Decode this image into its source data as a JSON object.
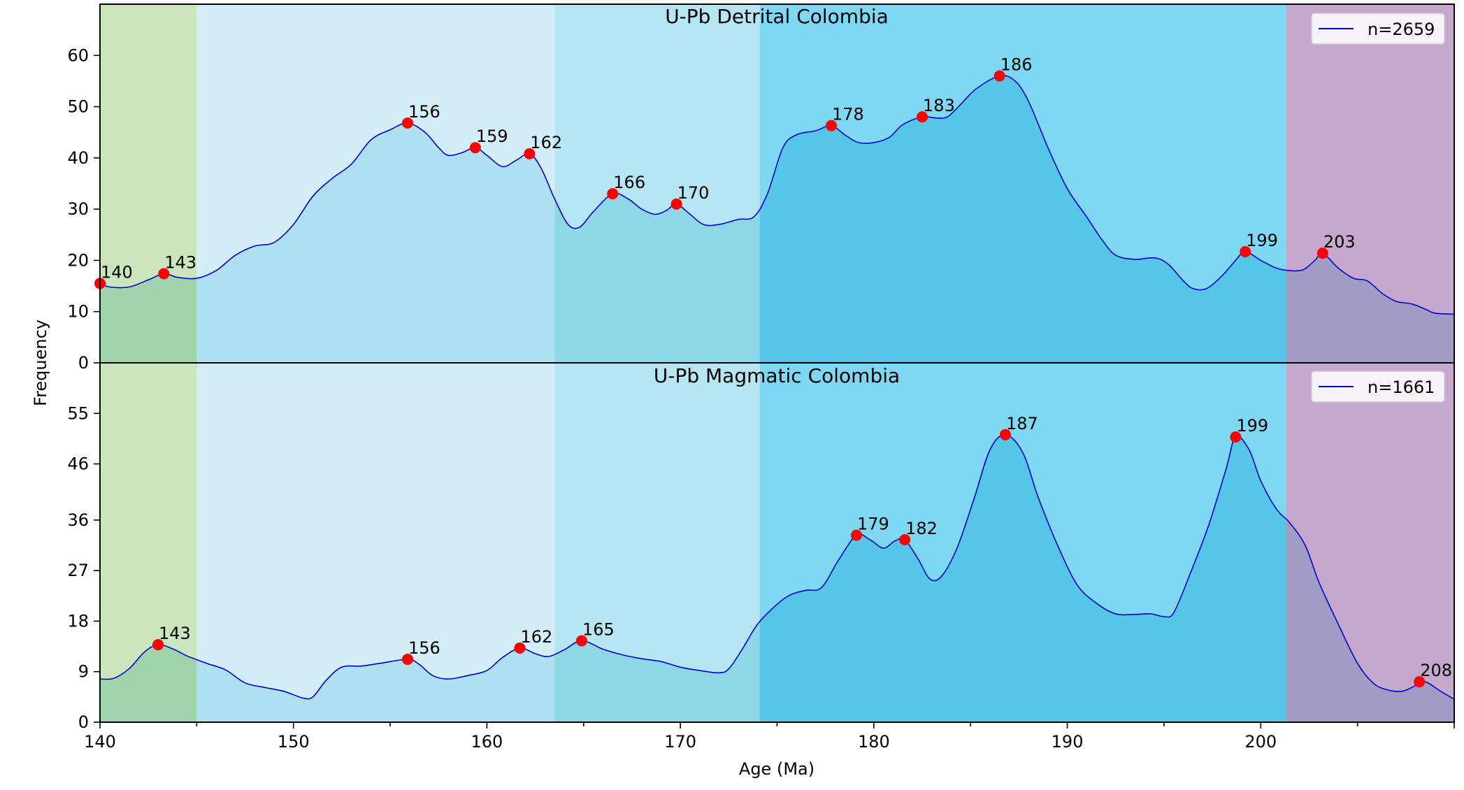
{
  "figure": {
    "ylabel": "Frequency",
    "xlabel": "Age (Ma)"
  },
  "chart_data": [
    {
      "type": "area",
      "title": "U-Pb Detrital Colombia",
      "legend": "n=2659",
      "legend_placement": "top-right",
      "xlim": [
        140,
        210
      ],
      "ylim": [
        0,
        70
      ],
      "yticks": [
        0,
        10,
        20,
        30,
        40,
        50,
        60
      ],
      "xticks": [
        140,
        150,
        160,
        170,
        180,
        190,
        200
      ],
      "line_color": "#0000cc",
      "peak_color": "#ff0000",
      "curve": [
        [
          140,
          15.5
        ],
        [
          140.5,
          14.8
        ],
        [
          141.5,
          14.8
        ],
        [
          142.5,
          16.2
        ],
        [
          143.3,
          17.4
        ],
        [
          144,
          16.7
        ],
        [
          145,
          16.5
        ],
        [
          146,
          18
        ],
        [
          147,
          21
        ],
        [
          148,
          22.8
        ],
        [
          149,
          23.5
        ],
        [
          150,
          27
        ],
        [
          151,
          32.5
        ],
        [
          152,
          36
        ],
        [
          153,
          38.8
        ],
        [
          154,
          43.5
        ],
        [
          155,
          45.5
        ],
        [
          155.9,
          46.8
        ],
        [
          156.8,
          45
        ],
        [
          157.5,
          42
        ],
        [
          158,
          40.5
        ],
        [
          158.7,
          41
        ],
        [
          159.4,
          42
        ],
        [
          160,
          40.5
        ],
        [
          160.8,
          38.3
        ],
        [
          161.5,
          39.5
        ],
        [
          162.2,
          40.8
        ],
        [
          162.8,
          38
        ],
        [
          163.5,
          32
        ],
        [
          164.2,
          27
        ],
        [
          164.8,
          26.5
        ],
        [
          165.5,
          29.5
        ],
        [
          166.5,
          33
        ],
        [
          167.3,
          32
        ],
        [
          168,
          30
        ],
        [
          168.7,
          29
        ],
        [
          169.3,
          29.8
        ],
        [
          169.8,
          31
        ],
        [
          170.5,
          29
        ],
        [
          171.2,
          27
        ],
        [
          172,
          27
        ],
        [
          173,
          28
        ],
        [
          173.8,
          28.5
        ],
        [
          174.5,
          33
        ],
        [
          175.3,
          42
        ],
        [
          176,
          44.5
        ],
        [
          177,
          45.3
        ],
        [
          177.8,
          46.3
        ],
        [
          178.5,
          44.5
        ],
        [
          179.2,
          43
        ],
        [
          180,
          43
        ],
        [
          180.8,
          44
        ],
        [
          181.5,
          46.5
        ],
        [
          182.5,
          48
        ],
        [
          183.2,
          47.8
        ],
        [
          183.8,
          48
        ],
        [
          184.5,
          50.5
        ],
        [
          185.3,
          53.5
        ],
        [
          186.5,
          56
        ],
        [
          187.3,
          55
        ],
        [
          188,
          51
        ],
        [
          189,
          42
        ],
        [
          190,
          34
        ],
        [
          191,
          28.5
        ],
        [
          191.8,
          24
        ],
        [
          192.5,
          21
        ],
        [
          193.5,
          20.2
        ],
        [
          194.5,
          20.5
        ],
        [
          195.2,
          19.3
        ],
        [
          196,
          16
        ],
        [
          196.5,
          14.5
        ],
        [
          197.2,
          14.5
        ],
        [
          198,
          17
        ],
        [
          198.7,
          20
        ],
        [
          199.2,
          21.7
        ],
        [
          200,
          20
        ],
        [
          200.8,
          18.5
        ],
        [
          201.5,
          18
        ],
        [
          202.2,
          18.2
        ],
        [
          202.8,
          20
        ],
        [
          203.2,
          21.4
        ],
        [
          204,
          18.5
        ],
        [
          204.8,
          16.5
        ],
        [
          205.5,
          16
        ],
        [
          206.3,
          13.5
        ],
        [
          207,
          12
        ],
        [
          207.8,
          11.5
        ],
        [
          208.5,
          10.5
        ],
        [
          209,
          9.7
        ],
        [
          210,
          9.5
        ]
      ],
      "peaks": [
        {
          "x": 140,
          "y": 15.5,
          "label": "140"
        },
        {
          "x": 143.3,
          "y": 17.4,
          "label": "143"
        },
        {
          "x": 155.9,
          "y": 46.8,
          "label": "156"
        },
        {
          "x": 159.4,
          "y": 42,
          "label": "159"
        },
        {
          "x": 162.2,
          "y": 40.8,
          "label": "162"
        },
        {
          "x": 166.5,
          "y": 33,
          "label": "166"
        },
        {
          "x": 169.8,
          "y": 31,
          "label": "170"
        },
        {
          "x": 177.8,
          "y": 46.3,
          "label": "178"
        },
        {
          "x": 182.5,
          "y": 48,
          "label": "183"
        },
        {
          "x": 186.5,
          "y": 56,
          "label": "186"
        },
        {
          "x": 199.2,
          "y": 21.7,
          "label": "199"
        },
        {
          "x": 203.2,
          "y": 21.4,
          "label": "203"
        }
      ]
    },
    {
      "type": "area",
      "title": "U-Pb Magmatic Colombia",
      "legend": "n=1661",
      "legend_placement": "top-right",
      "xlim": [
        140,
        210
      ],
      "ylim": [
        0,
        64
      ],
      "yticks": [
        0,
        9,
        18,
        27,
        36,
        46,
        55
      ],
      "xticks": [
        140,
        150,
        160,
        170,
        180,
        190,
        200
      ],
      "line_color": "#0000cc",
      "peak_color": "#ff0000",
      "curve": [
        [
          140,
          7.7
        ],
        [
          140.7,
          7.8
        ],
        [
          141.5,
          9.5
        ],
        [
          142.3,
          12.5
        ],
        [
          143,
          13.8
        ],
        [
          143.8,
          13
        ],
        [
          144.5,
          11.8
        ],
        [
          145.5,
          10.5
        ],
        [
          146.5,
          9.3
        ],
        [
          147.5,
          7
        ],
        [
          148.5,
          6.2
        ],
        [
          149.5,
          5.5
        ],
        [
          150.5,
          4.3
        ],
        [
          151,
          4.5
        ],
        [
          151.7,
          7.5
        ],
        [
          152.5,
          9.8
        ],
        [
          153.5,
          10
        ],
        [
          154.5,
          10.5
        ],
        [
          155.9,
          11.2
        ],
        [
          156.5,
          10.3
        ],
        [
          157.2,
          8.3
        ],
        [
          158,
          7.7
        ],
        [
          159,
          8.3
        ],
        [
          160,
          9.2
        ],
        [
          160.8,
          11.5
        ],
        [
          161.7,
          13.2
        ],
        [
          162.5,
          12.2
        ],
        [
          163.2,
          11.7
        ],
        [
          164,
          12.9
        ],
        [
          164.9,
          14.5
        ],
        [
          166,
          13
        ],
        [
          167,
          12
        ],
        [
          168,
          11.3
        ],
        [
          169,
          10.8
        ],
        [
          170,
          9.8
        ],
        [
          171,
          9.2
        ],
        [
          172,
          8.8
        ],
        [
          172.5,
          9.5
        ],
        [
          173.2,
          13
        ],
        [
          174,
          17.5
        ],
        [
          175,
          21
        ],
        [
          175.7,
          22.7
        ],
        [
          176.5,
          23.5
        ],
        [
          177.3,
          24
        ],
        [
          178.2,
          29
        ],
        [
          179.1,
          33.3
        ],
        [
          179.8,
          32.5
        ],
        [
          180.5,
          31
        ],
        [
          181.1,
          32.3
        ],
        [
          181.6,
          32.5
        ],
        [
          182.3,
          29
        ],
        [
          182.9,
          25.5
        ],
        [
          183.5,
          26
        ],
        [
          184.3,
          31
        ],
        [
          185.2,
          40
        ],
        [
          186,
          48.5
        ],
        [
          186.8,
          51.2
        ],
        [
          187.7,
          48
        ],
        [
          188.5,
          40
        ],
        [
          189.5,
          31.5
        ],
        [
          190.5,
          24.5
        ],
        [
          191.5,
          21.2
        ],
        [
          192.5,
          19.3
        ],
        [
          193.5,
          19.2
        ],
        [
          194.3,
          19.3
        ],
        [
          195,
          18.8
        ],
        [
          195.5,
          19.5
        ],
        [
          196.3,
          26
        ],
        [
          197.3,
          35
        ],
        [
          198.2,
          45
        ],
        [
          198.7,
          50.8
        ],
        [
          199.4,
          48.5
        ],
        [
          200,
          43
        ],
        [
          200.8,
          38
        ],
        [
          201.5,
          35.5
        ],
        [
          202.3,
          31.5
        ],
        [
          203,
          25
        ],
        [
          204,
          17.5
        ],
        [
          205,
          10.5
        ],
        [
          205.8,
          7
        ],
        [
          206.5,
          5.8
        ],
        [
          207.3,
          5.5
        ],
        [
          208,
          6.5
        ],
        [
          208.5,
          7.2
        ],
        [
          209.3,
          5.5
        ],
        [
          210,
          4.1
        ]
      ],
      "peaks": [
        {
          "x": 143,
          "y": 13.8,
          "label": "143"
        },
        {
          "x": 155.9,
          "y": 11.2,
          "label": "156"
        },
        {
          "x": 161.7,
          "y": 13.2,
          "label": "162"
        },
        {
          "x": 164.9,
          "y": 14.5,
          "label": "165"
        },
        {
          "x": 179.1,
          "y": 33.3,
          "label": "179"
        },
        {
          "x": 181.6,
          "y": 32.5,
          "label": "182"
        },
        {
          "x": 186.8,
          "y": 51.2,
          "label": "187"
        },
        {
          "x": 198.7,
          "y": 50.8,
          "label": "199"
        },
        {
          "x": 208.2,
          "y": 7.2,
          "label": "208"
        }
      ]
    }
  ],
  "time_bands": [
    {
      "from": 140,
      "to": 145,
      "color": "#cbe6bd",
      "under_color": "#9fd4ad"
    },
    {
      "from": 145,
      "to": 163.5,
      "color": "#d3edf9",
      "under_color": "#aee0f1"
    },
    {
      "from": 163.5,
      "to": 174.1,
      "color": "#b6e6f4",
      "under_color": "#8ed7e7"
    },
    {
      "from": 174.1,
      "to": 201.3,
      "color": "#7fd8f3",
      "under_color": "#56c6e8"
    },
    {
      "from": 201.3,
      "to": 210,
      "color": "#c6a7cd",
      "under_color": "#a19cc5"
    }
  ]
}
